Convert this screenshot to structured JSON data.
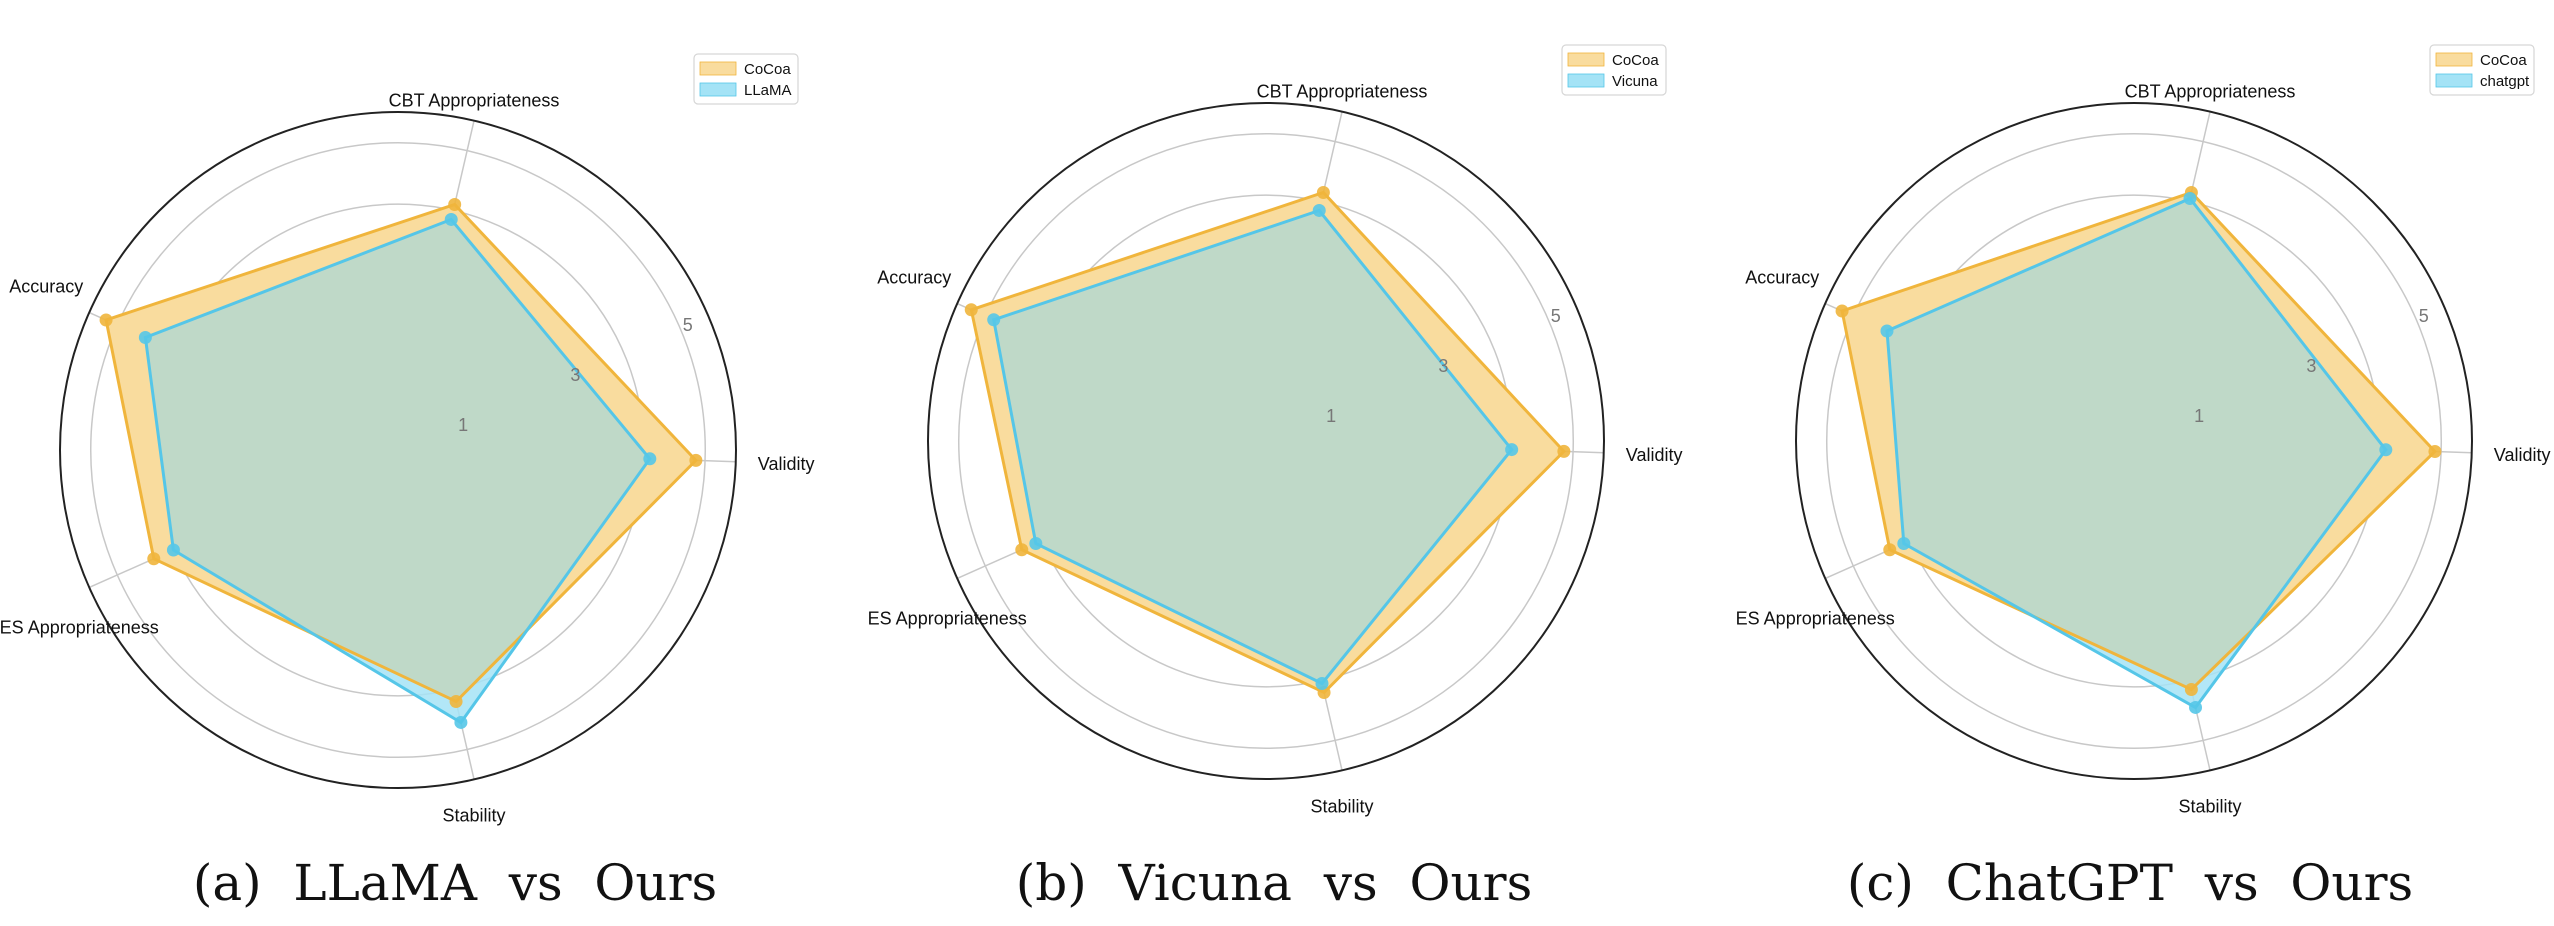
{
  "colors": {
    "cocoa_line": "#f0b53c",
    "cocoa_fill": "#f9dc9e",
    "baseline_line": "#55c6e8",
    "baseline_fill": "#a4e3f6",
    "overlap_fill": "#bfd9c8",
    "grid": "#c8c8c8",
    "outer_circle": "#222222"
  },
  "chart_data": [
    {
      "type": "radar",
      "caption": "(a)  LLaMA  vs  Ours",
      "axes": [
        "Validity",
        "CBT Appropriateness",
        "Accuracy",
        "ES Appropriateness",
        "Stability"
      ],
      "radial_ticks": [
        "1",
        "3",
        "5"
      ],
      "r_range": [
        0,
        5.5
      ],
      "grid": true,
      "legend": "top-right",
      "series": [
        {
          "name": "CoCoa",
          "values": [
            4.85,
            4.1,
            5.2,
            4.35,
            4.2
          ]
        },
        {
          "name": "LLaMA",
          "values": [
            4.1,
            3.85,
            4.5,
            4.0,
            4.55
          ]
        }
      ]
    },
    {
      "type": "radar",
      "caption": "(b)  Vicuna  vs  Ours",
      "axes": [
        "Validity",
        "CBT Appropriateness",
        "Accuracy",
        "ES Appropriateness",
        "Stability"
      ],
      "radial_ticks": [
        "1",
        "3",
        "5"
      ],
      "r_range": [
        0,
        5.5
      ],
      "grid": true,
      "legend": "top-right",
      "series": [
        {
          "name": "CoCoa",
          "values": [
            4.85,
            4.15,
            5.25,
            4.35,
            4.2
          ]
        },
        {
          "name": "Vicuna",
          "values": [
            4.0,
            3.85,
            4.85,
            4.1,
            4.05
          ]
        }
      ]
    },
    {
      "type": "radar",
      "caption": "(c)  ChatGPT  vs  Ours",
      "axes": [
        "Validity",
        "CBT Appropriateness",
        "Accuracy",
        "ES Appropriateness",
        "Stability"
      ],
      "radial_ticks": [
        "1",
        "3",
        "5"
      ],
      "r_range": [
        0,
        5.5
      ],
      "grid": true,
      "legend": "top-right",
      "series": [
        {
          "name": "CoCoa",
          "values": [
            4.9,
            4.15,
            5.2,
            4.35,
            4.15
          ]
        },
        {
          "name": "chatgpt",
          "values": [
            4.1,
            4.05,
            4.4,
            4.1,
            4.45
          ]
        }
      ]
    }
  ]
}
